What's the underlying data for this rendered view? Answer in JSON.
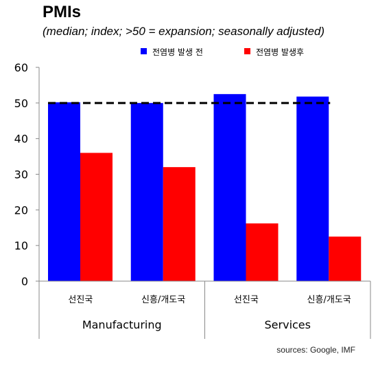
{
  "title": "PMIs",
  "subtitle": "(median; index; >50 = expansion; seasonally adjusted)",
  "source": "sources: Google, IMF",
  "chart_data": {
    "type": "bar",
    "categories": [
      "선진국",
      "신흥/개도국",
      "선진국",
      "신흥/개도국"
    ],
    "groups": [
      {
        "label": "Manufacturing",
        "categories": [
          0,
          1
        ]
      },
      {
        "label": "Services",
        "categories": [
          2,
          3
        ]
      }
    ],
    "series": [
      {
        "name": "전염병 발생 전",
        "color": "#0000ff",
        "values": [
          50.2,
          50.0,
          52.5,
          51.8
        ]
      },
      {
        "name": "전염병 발생후",
        "color": "#ff0000",
        "values": [
          36.0,
          32.0,
          16.2,
          12.5
        ]
      }
    ],
    "reference_line": {
      "value": 50,
      "style": "dashed",
      "color": "#000000"
    },
    "ylim": [
      0,
      60
    ],
    "yticks": [
      "0",
      "10",
      "20",
      "30",
      "40",
      "50",
      "60"
    ],
    "legend_position": "top",
    "grid": false
  }
}
